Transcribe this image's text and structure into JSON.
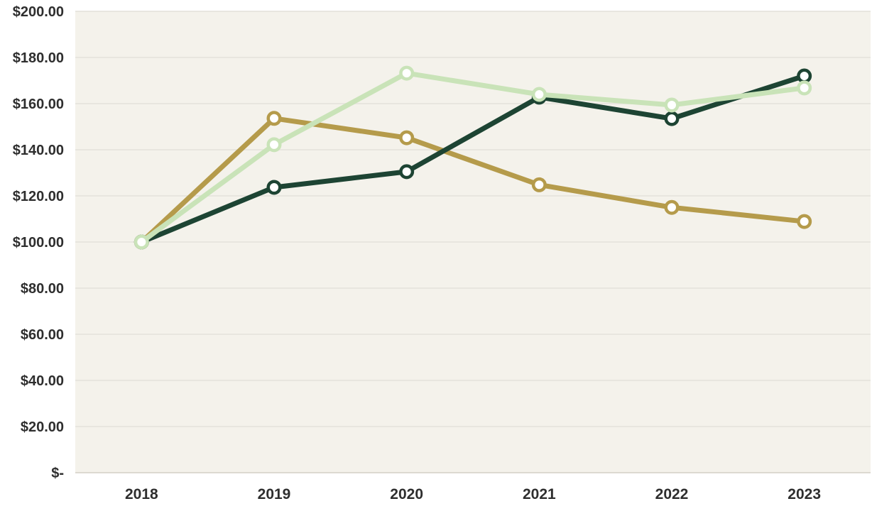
{
  "chart_data": {
    "type": "line",
    "title": "",
    "xlabel": "",
    "ylabel": "",
    "legend_position": "none",
    "grid": true,
    "marker_style": "open-circle",
    "x_categories": [
      "2018",
      "2019",
      "2020",
      "2021",
      "2022",
      "2023"
    ],
    "series": [
      {
        "name": "gold",
        "color": "#b59b4b",
        "values": [
          100,
          153.6,
          145.2,
          124.8,
          115.0,
          108.9
        ]
      },
      {
        "name": "dark-green",
        "color": "#1d4433",
        "values": [
          100,
          123.7,
          130.5,
          162.8,
          153.5,
          172.0
        ]
      },
      {
        "name": "light-green",
        "color": "#c9e3b8",
        "values": [
          100,
          142.2,
          173.2,
          164.0,
          159.4,
          166.8
        ]
      }
    ],
    "ylim": [
      0,
      200
    ],
    "y_ticks": [
      {
        "value": 200,
        "label": "$200.00"
      },
      {
        "value": 180,
        "label": "$180.00"
      },
      {
        "value": 160,
        "label": "$160.00"
      },
      {
        "value": 140,
        "label": "$140.00"
      },
      {
        "value": 120,
        "label": "$120.00"
      },
      {
        "value": 100,
        "label": "$100.00"
      },
      {
        "value": 80,
        "label": "$80.00"
      },
      {
        "value": 60,
        "label": "$60.00"
      },
      {
        "value": 40,
        "label": "$40.00"
      },
      {
        "value": 20,
        "label": "$20.00"
      },
      {
        "value": 0,
        "label": "$-"
      }
    ]
  },
  "colors": {
    "page_bg": "#ffffff",
    "plot_bg": "#f4f2eb",
    "gridline": "#e8e6df",
    "baseline": "#dcd9d1",
    "axis_text": "#2e2e2e",
    "marker_fill": "#ffffff"
  }
}
